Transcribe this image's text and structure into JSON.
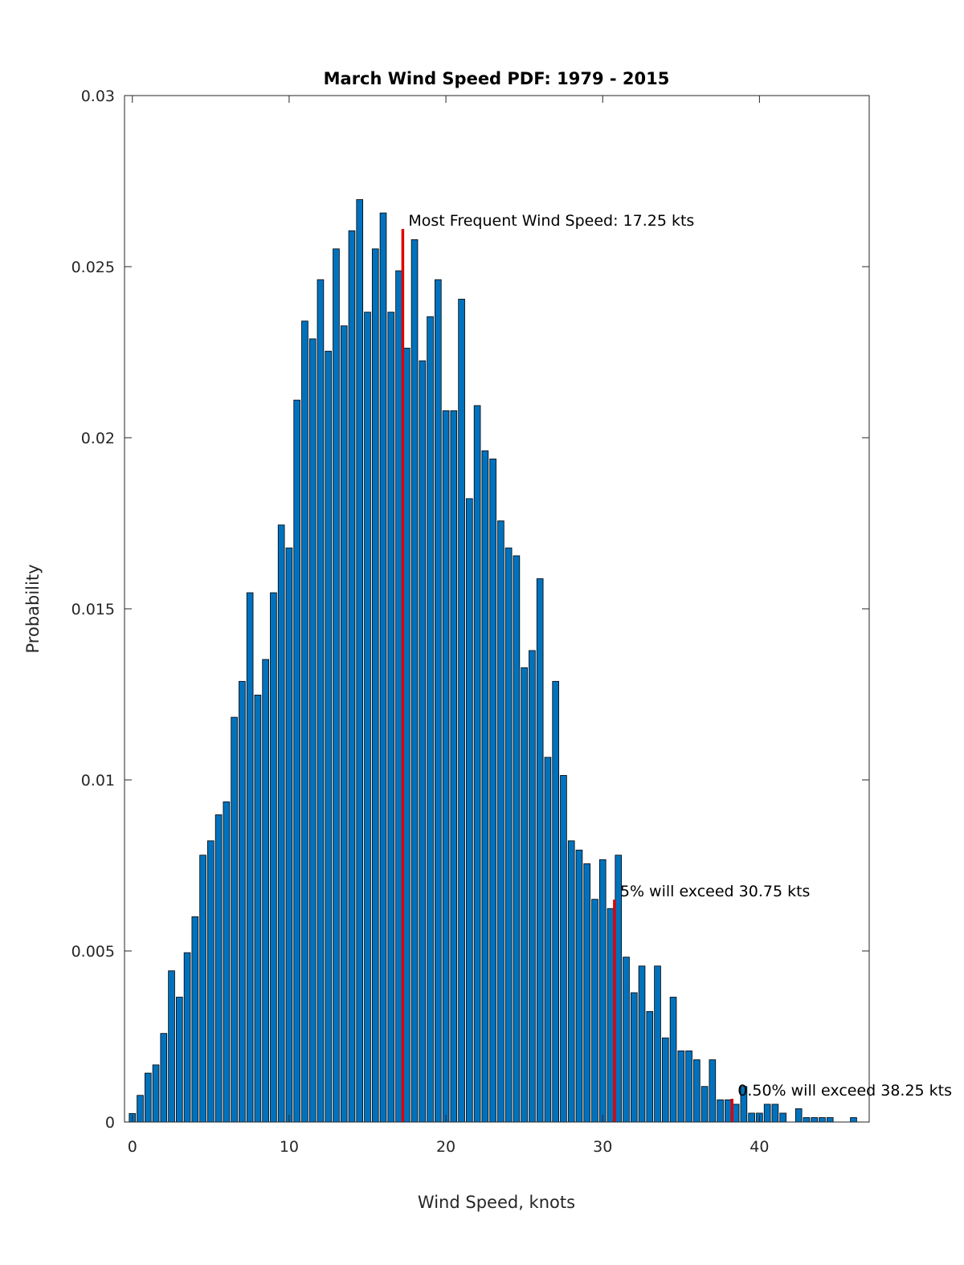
{
  "chart_data": {
    "type": "bar",
    "title": "March Wind Speed PDF: 1979 - 2015",
    "xlabel": "Wind Speed, knots",
    "ylabel": "Probability",
    "xlim": [
      -0.5,
      47
    ],
    "ylim": [
      0,
      0.03
    ],
    "grid": false,
    "bar_color": "#0072BD",
    "bar_edge_color": "#000000",
    "marker_color": "#E00000",
    "x_ticks": [
      0,
      10,
      20,
      30,
      40
    ],
    "x_tick_labels": [
      "0",
      "10",
      "20",
      "30",
      "40"
    ],
    "y_ticks": [
      0,
      0.005,
      0.01,
      0.015,
      0.02,
      0.025,
      0.03
    ],
    "y_tick_labels": [
      "0",
      "0.005",
      "0.01",
      "0.015",
      "0.02",
      "0.025",
      "0.03"
    ],
    "bar_width": 0.4,
    "x": [
      0,
      0.5,
      1,
      1.5,
      2,
      2.5,
      3,
      3.5,
      4,
      4.5,
      5,
      5.5,
      6,
      6.5,
      7,
      7.5,
      8,
      8.5,
      9,
      9.5,
      10,
      10.5,
      11,
      11.5,
      12,
      12.5,
      13,
      13.5,
      14,
      14.5,
      15,
      15.5,
      16,
      16.5,
      17,
      17.5,
      18,
      18.5,
      19,
      19.5,
      20,
      20.5,
      21,
      21.5,
      22,
      22.5,
      23,
      23.5,
      24,
      24.5,
      25,
      25.5,
      26,
      26.5,
      27,
      27.5,
      28,
      28.5,
      29,
      29.5,
      30,
      30.5,
      31,
      31.5,
      32,
      32.5,
      33,
      33.5,
      34,
      34.5,
      35,
      35.5,
      36,
      36.5,
      37,
      37.5,
      38,
      38.5,
      39,
      39.5,
      40,
      40.5,
      41,
      41.5,
      42,
      42.5,
      43,
      43.5,
      44,
      44.5,
      45,
      45.5,
      46
    ],
    "values": [
      0.00025,
      0.00078,
      0.00143,
      0.00167,
      0.00259,
      0.00442,
      0.00365,
      0.00495,
      0.006,
      0.0078,
      0.00822,
      0.00898,
      0.00936,
      0.01183,
      0.01288,
      0.01547,
      0.01248,
      0.01352,
      0.01547,
      0.01745,
      0.01678,
      0.0211,
      0.02341,
      0.02289,
      0.02462,
      0.02253,
      0.02552,
      0.02327,
      0.02605,
      0.02696,
      0.02367,
      0.02552,
      0.02657,
      0.02367,
      0.02488,
      0.02262,
      0.02579,
      0.02225,
      0.02354,
      0.02462,
      0.02079,
      0.02079,
      0.02405,
      0.01822,
      0.02094,
      0.01962,
      0.01938,
      0.01757,
      0.01678,
      0.01655,
      0.01328,
      0.01378,
      0.01588,
      0.01066,
      0.01288,
      0.01013,
      0.00822,
      0.00795,
      0.00755,
      0.00651,
      0.00767,
      0.00624,
      0.0078,
      0.00482,
      0.00378,
      0.00456,
      0.00323,
      0.00456,
      0.00246,
      0.00365,
      0.00208,
      0.00208,
      0.00182,
      0.00104,
      0.00182,
      0.00065,
      0.00065,
      0.00052,
      0.00104,
      0.00026,
      0.00026,
      0.00052,
      0.00052,
      0.00026,
      0,
      0.00039,
      0.00013,
      0.00013,
      0.00013,
      0.00013,
      0,
      0,
      0.00013
    ],
    "annotations": [
      {
        "text": "Most Frequent Wind Speed: 17.25 kts",
        "line_x": 17.25,
        "line_top": 0.0261
      },
      {
        "text": "5% will exceed 30.75 kts",
        "line_x": 30.75,
        "line_top": 0.0065
      },
      {
        "text": "0.50% will exceed 38.25 kts",
        "line_x": 38.25,
        "line_top": 0.00068
      }
    ]
  }
}
